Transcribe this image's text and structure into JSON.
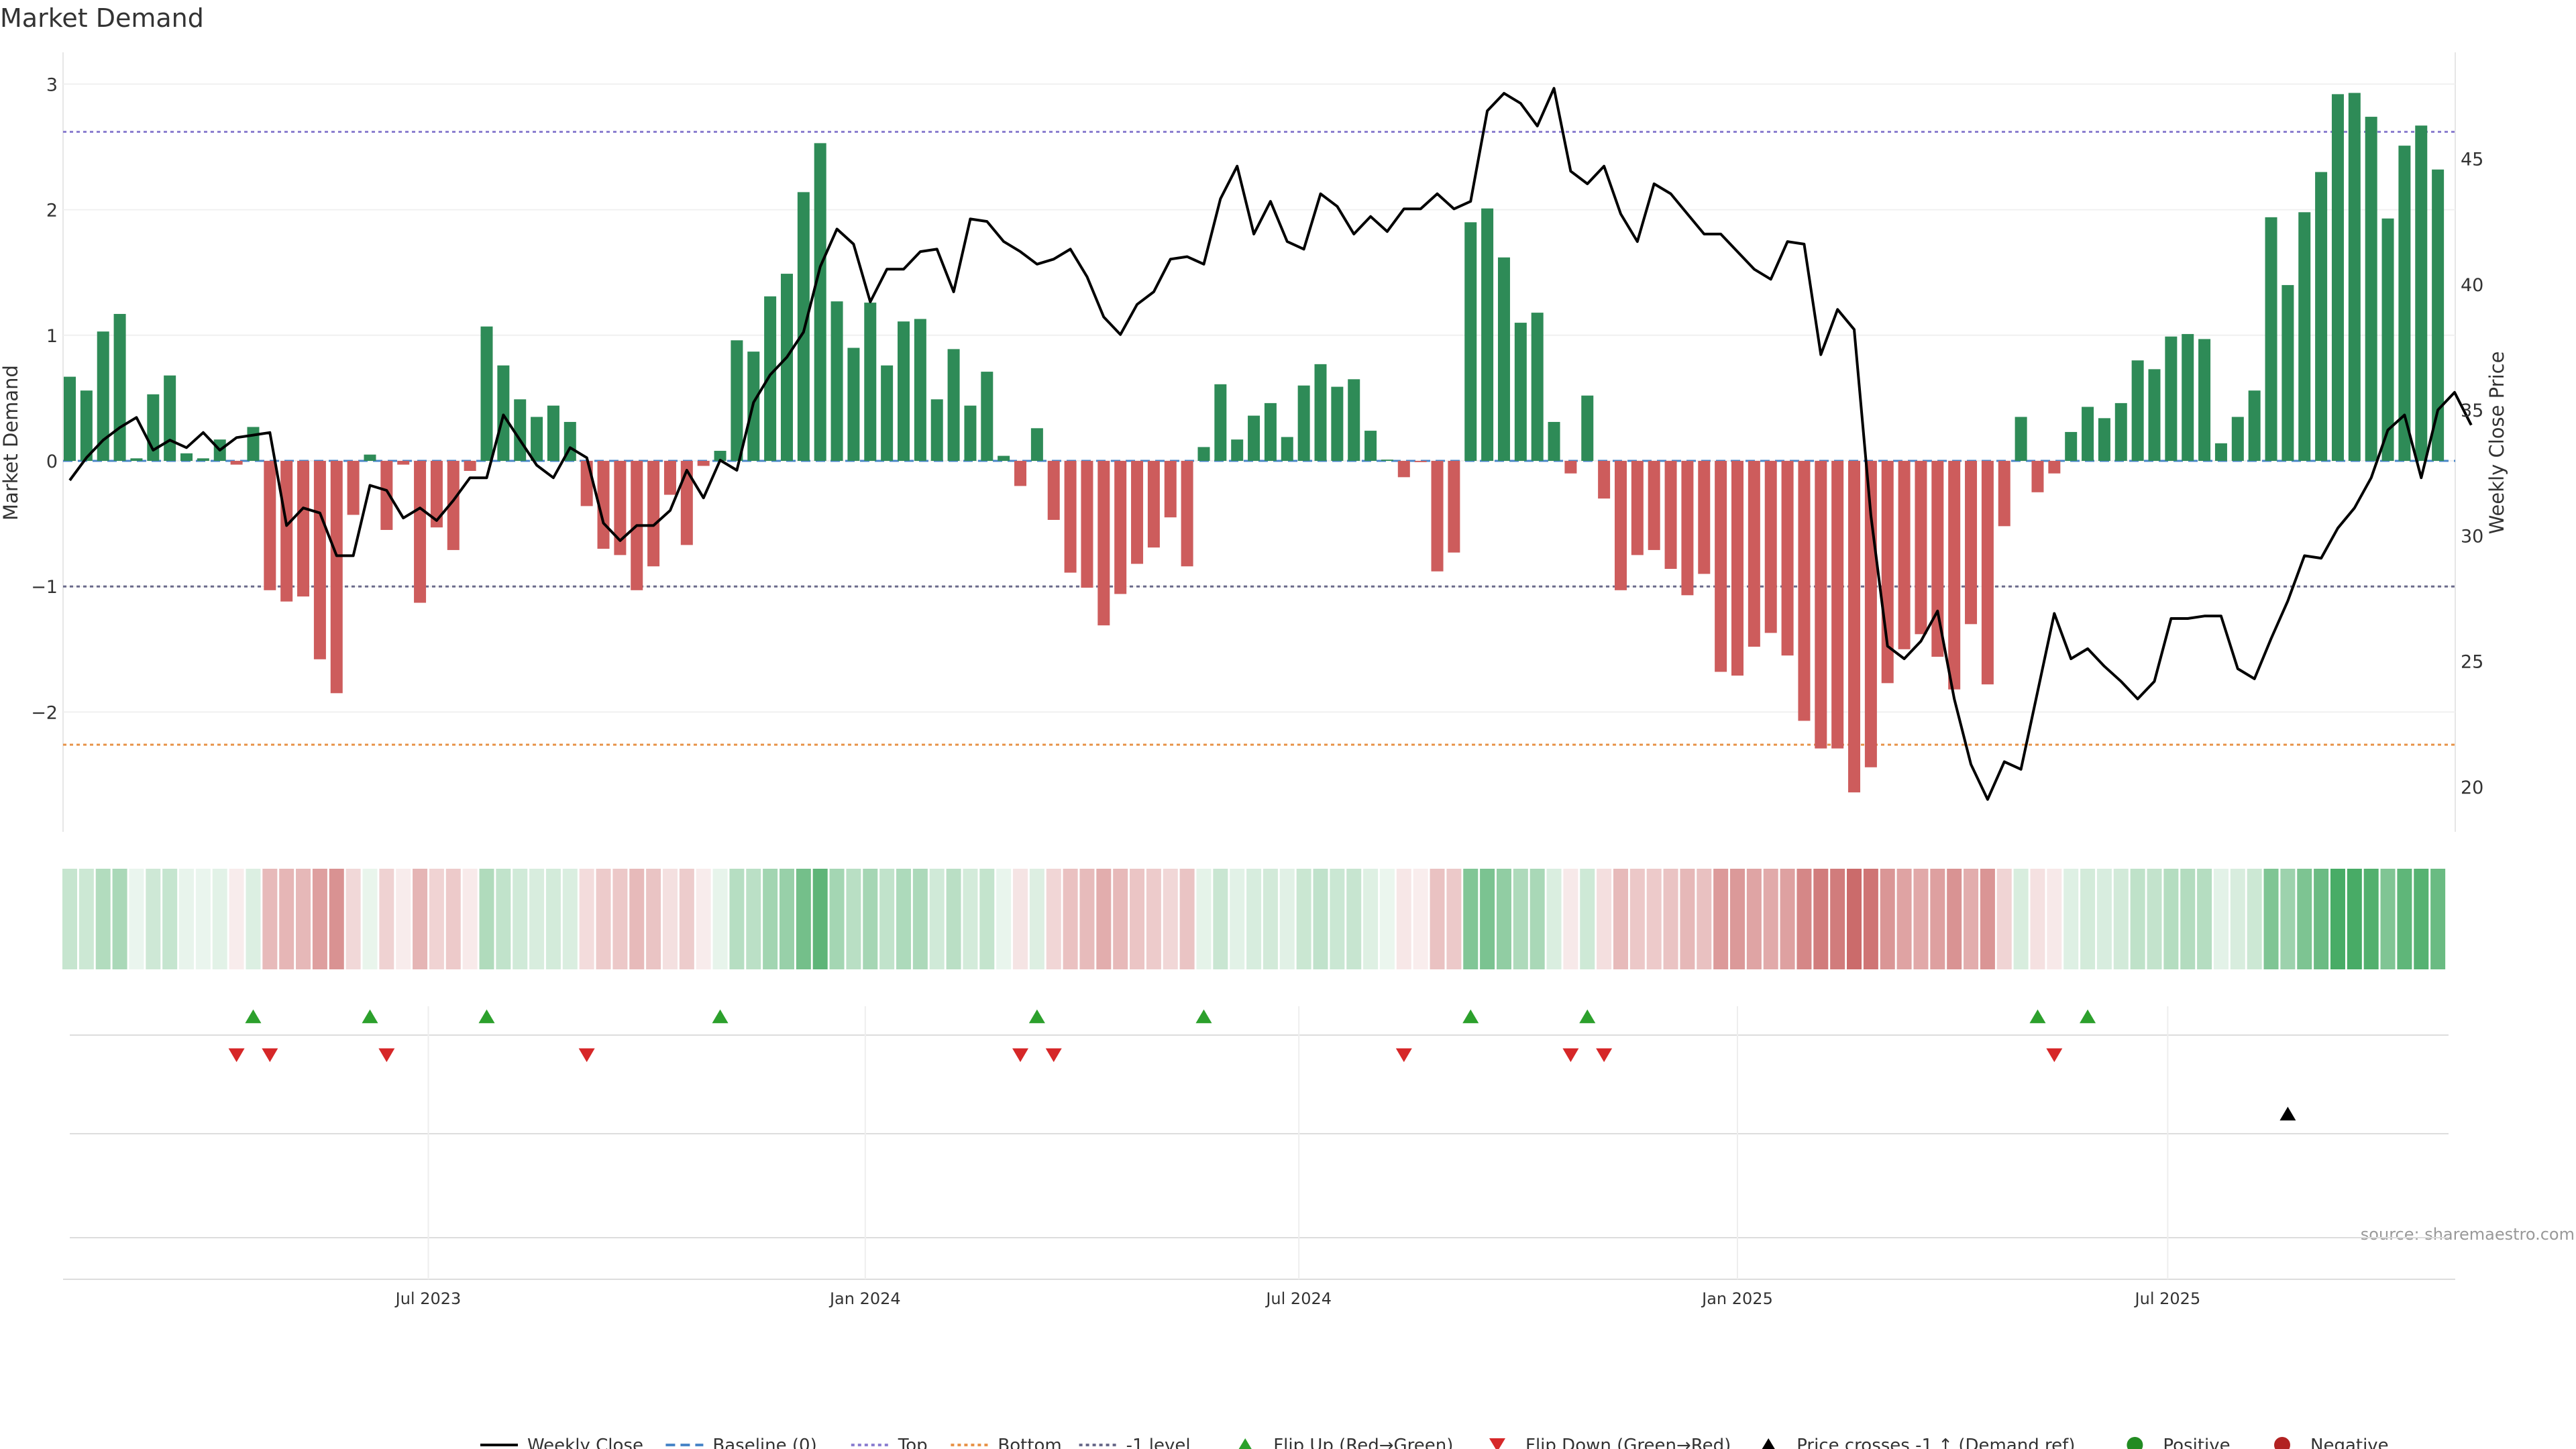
{
  "chart_data": {
    "type": "bar",
    "title": "Market Demand",
    "ylabel_left": "Market Demand",
    "ylabel_right": "Weekly Close Price",
    "source": "source: sharemaestro.com",
    "ylim_left": [
      -2.95,
      3.35
    ],
    "yticks_left": [
      3,
      2,
      1,
      0,
      -1,
      -2
    ],
    "ytick_labels_left": [
      "3",
      "2",
      "1",
      "0",
      "−1",
      "−2"
    ],
    "ylim_right": [
      18.3,
      49.2
    ],
    "yticks_right": [
      45,
      40,
      35,
      30,
      25,
      20
    ],
    "ytick_labels_right": [
      "45",
      "40",
      "35",
      "30",
      "25",
      "20"
    ],
    "reference_lines": [
      {
        "name": "Top",
        "value": 2.62,
        "color": "#8c7fd0"
      },
      {
        "name": "Baseline (0)",
        "value": 0,
        "color": "#4a86c8"
      },
      {
        "name": "-1 level",
        "value": -1,
        "color": "#6a6a8a"
      },
      {
        "name": "Bottom",
        "value": -2.26,
        "color": "#e8944a"
      }
    ],
    "x_tick_labels": [
      {
        "label": "Jul 2023",
        "week": 21.5
      },
      {
        "label": "Jan 2024",
        "week": 47.7
      },
      {
        "label": "Jul 2024",
        "week": 73.7
      },
      {
        "label": "Jan 2025",
        "week": 100
      },
      {
        "label": "Jul 2025",
        "week": 125.8
      }
    ],
    "series": [
      {
        "name": "Market Demand",
        "type": "bar",
        "values": [
          0.67,
          0.56,
          1.03,
          1.17,
          0.02,
          0.53,
          0.68,
          0.06,
          0.02,
          0.17,
          -0.03,
          0.27,
          -1.03,
          -1.12,
          -1.08,
          -1.58,
          -1.85,
          -0.43,
          0.05,
          -0.55,
          -0.03,
          -1.13,
          -0.53,
          -0.71,
          -0.08,
          1.07,
          0.76,
          0.49,
          0.35,
          0.44,
          0.31,
          -0.36,
          -0.7,
          -0.75,
          -1.03,
          -0.84,
          -0.27,
          -0.67,
          -0.04,
          0.08,
          0.96,
          0.87,
          1.31,
          1.49,
          2.14,
          2.53,
          1.27,
          0.9,
          1.26,
          0.76,
          1.11,
          1.13,
          0.49,
          0.89,
          0.44,
          0.71,
          0.04,
          -0.2,
          0.26,
          -0.47,
          -0.89,
          -1.01,
          -1.31,
          -1.06,
          -0.82,
          -0.69,
          -0.45,
          -0.84,
          0.11,
          0.61,
          0.17,
          0.36,
          0.46,
          0.19,
          0.6,
          0.77,
          0.59,
          0.65,
          0.24,
          0.01,
          -0.13,
          -0.01,
          -0.88,
          -0.73,
          1.9,
          2.01,
          1.62,
          1.1,
          1.18,
          0.31,
          -0.1,
          0.52,
          -0.3,
          -1.03,
          -0.75,
          -0.71,
          -0.86,
          -1.07,
          -0.9,
          -1.68,
          -1.71,
          -1.48,
          -1.37,
          -1.55,
          -2.07,
          -2.29,
          -2.29,
          -2.64,
          -2.44,
          -1.77,
          -1.5,
          -1.38,
          -1.56,
          -1.82,
          -1.3,
          -1.78,
          -0.52,
          0.35,
          -0.25,
          -0.1,
          0.23,
          0.43,
          0.34,
          0.46,
          0.8,
          0.73,
          0.99,
          1.01,
          0.97,
          0.14,
          0.35,
          0.56,
          1.94,
          1.4,
          1.98,
          2.3,
          2.92,
          2.93,
          2.74,
          1.93,
          2.51,
          2.67,
          2.32
        ]
      },
      {
        "name": "Weekly Close",
        "type": "line",
        "values": [
          32.2,
          33.1,
          33.8,
          34.3,
          34.7,
          33.4,
          33.8,
          33.5,
          34.1,
          33.4,
          33.9,
          34.0,
          34.1,
          30.4,
          31.1,
          30.9,
          29.2,
          29.2,
          32.0,
          31.8,
          30.7,
          31.1,
          30.6,
          31.4,
          32.3,
          32.3,
          34.8,
          33.8,
          32.8,
          32.3,
          33.5,
          33.1,
          30.5,
          29.8,
          30.4,
          30.4,
          31.0,
          32.6,
          31.5,
          33.0,
          32.6,
          35.3,
          36.4,
          37.1,
          38.1,
          40.7,
          42.2,
          41.6,
          39.3,
          40.6,
          40.6,
          41.3,
          41.4,
          39.7,
          42.6,
          42.5,
          41.7,
          41.3,
          40.8,
          41.0,
          41.4,
          40.3,
          38.7,
          38.0,
          39.2,
          39.7,
          41.0,
          41.1,
          40.8,
          43.4,
          44.7,
          42.0,
          43.3,
          41.7,
          41.4,
          43.6,
          43.1,
          42.0,
          42.7,
          42.1,
          43.0,
          43.0,
          43.6,
          43.0,
          43.3,
          46.9,
          47.6,
          47.2,
          46.3,
          47.8,
          44.5,
          44.0,
          44.7,
          42.8,
          41.7,
          44.0,
          43.6,
          42.8,
          42.0,
          42.0,
          41.3,
          40.6,
          40.2,
          41.7,
          41.6,
          37.2,
          39.0,
          38.2,
          30.8,
          25.6,
          25.1,
          25.8,
          27.0,
          23.5,
          20.9,
          19.5,
          21.0,
          20.7,
          23.8,
          26.9,
          25.1,
          25.5,
          24.8,
          24.2,
          23.5,
          24.2,
          26.7,
          26.7,
          26.8,
          26.8,
          24.7,
          24.3,
          25.9,
          27.4,
          29.2,
          29.1,
          30.3,
          31.1,
          32.3,
          34.2,
          34.8,
          32.3,
          35.0,
          35.7,
          34.4
        ]
      }
    ],
    "flip_up_weeks": [
      11,
      18,
      25,
      39,
      58,
      68,
      84,
      91,
      118,
      121
    ],
    "flip_down_weeks": [
      10,
      12,
      19,
      31,
      57,
      59,
      80,
      90,
      92,
      119
    ],
    "price_cross_weeks": [
      133
    ],
    "legend": [
      {
        "label": "Weekly Close",
        "kind": "line-solid",
        "color": "#000000"
      },
      {
        "label": "Baseline (0)",
        "kind": "line-dash",
        "color": "#4a86c8"
      },
      {
        "label": "Top",
        "kind": "line-dot",
        "color": "#8c7fd0"
      },
      {
        "label": "Bottom",
        "kind": "line-dot",
        "color": "#e8944a"
      },
      {
        "label": "-1 level",
        "kind": "line-dot",
        "color": "#6a6a8a"
      },
      {
        "label": "Flip Up (Red→Green)",
        "kind": "tri-up",
        "color": "#2ca02c"
      },
      {
        "label": "Flip Down (Green→Red)",
        "kind": "tri-down",
        "color": "#d62728"
      },
      {
        "label": "Price crosses -1 ↑ (Demand ref)",
        "kind": "tri-up",
        "color": "#000000"
      },
      {
        "label": "Positive",
        "kind": "dot",
        "color": "#228b22"
      },
      {
        "label": "Negative",
        "kind": "dot",
        "color": "#b22222"
      }
    ],
    "colors": {
      "positive_bar": "#2e8b57",
      "negative_bar": "#cd5c5c",
      "price_line": "#000000",
      "flip_up": "#2ca02c",
      "flip_down": "#d62728"
    }
  }
}
